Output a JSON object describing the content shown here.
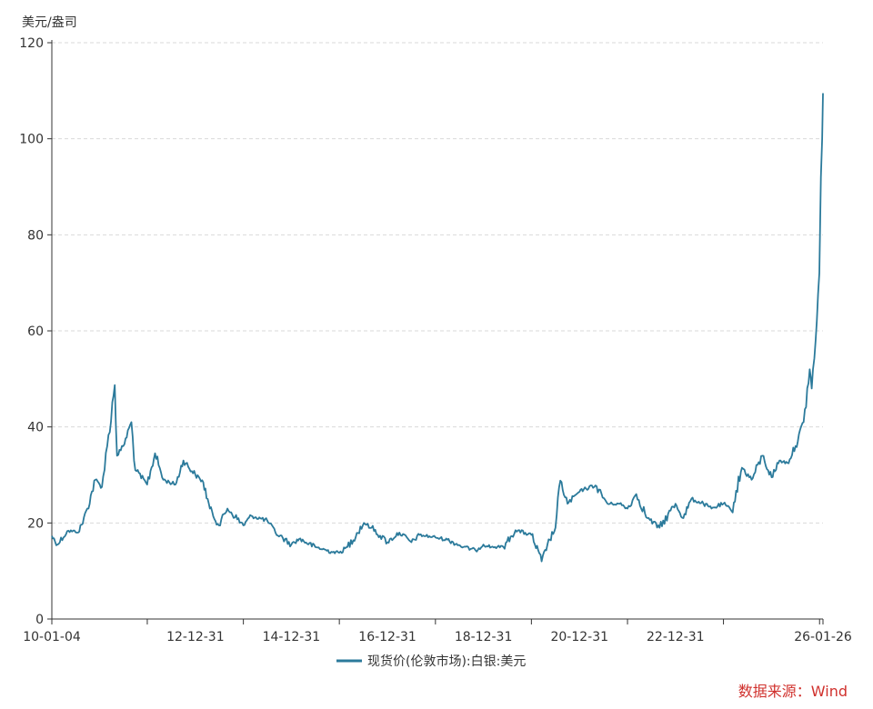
{
  "chart_data": {
    "type": "line",
    "ylabel": "美元/盎司",
    "ylim": [
      0,
      120
    ],
    "y_ticks": [
      0,
      20,
      40,
      60,
      80,
      100,
      120
    ],
    "x_tick_labels": [
      "10-01-04",
      "12-12-31",
      "14-12-31",
      "16-12-31",
      "18-12-31",
      "20-12-31",
      "22-12-31",
      "26-01-26"
    ],
    "grid": "horizontal-dashed",
    "legend_position": "bottom-center",
    "series": [
      {
        "name": "现货价(伦敦市场):白银:美元",
        "color": "#2b7a9b",
        "x": [
          "2010-01-04",
          "2010-02-15",
          "2010-05-01",
          "2010-08-01",
          "2010-10-01",
          "2010-12-01",
          "2011-01-20",
          "2011-03-01",
          "2011-04-28",
          "2011-05-15",
          "2011-07-01",
          "2011-09-01",
          "2011-10-01",
          "2011-12-30",
          "2012-02-28",
          "2012-05-01",
          "2012-08-01",
          "2012-10-01",
          "2012-12-31",
          "2013-03-01",
          "2013-04-20",
          "2013-06-28",
          "2013-09-01",
          "2013-12-31",
          "2014-03-01",
          "2014-07-01",
          "2014-09-01",
          "2014-12-31",
          "2015-03-01",
          "2015-07-01",
          "2015-11-01",
          "2015-12-31",
          "2016-03-01",
          "2016-07-05",
          "2016-09-01",
          "2016-12-31",
          "2017-04-01",
          "2017-07-01",
          "2017-09-01",
          "2017-12-31",
          "2018-04-01",
          "2018-08-01",
          "2018-11-01",
          "2018-12-31",
          "2019-03-01",
          "2019-06-01",
          "2019-09-01",
          "2019-12-31",
          "2020-03-18",
          "2020-05-01",
          "2020-07-01",
          "2020-08-07",
          "2020-10-01",
          "2020-12-31",
          "2021-02-01",
          "2021-05-01",
          "2021-08-01",
          "2021-11-01",
          "2021-12-31",
          "2022-03-08",
          "2022-06-01",
          "2022-09-01",
          "2022-12-31",
          "2023-03-01",
          "2023-05-01",
          "2023-08-01",
          "2023-10-01",
          "2023-12-31",
          "2024-03-01",
          "2024-05-20",
          "2024-08-01",
          "2024-10-22",
          "2024-12-31",
          "2025-03-01",
          "2025-05-01",
          "2025-07-01",
          "2025-09-01",
          "2025-10-17",
          "2025-11-01",
          "2025-12-01",
          "2025-12-29",
          "2026-01-10",
          "2026-01-20",
          "2026-01-26"
        ],
        "values": [
          17.3,
          15.5,
          18.3,
          18.2,
          23,
          29,
          27.5,
          36,
          48.7,
          34,
          36,
          41,
          31,
          28,
          34.5,
          29,
          28,
          33,
          30,
          28.5,
          23,
          19.5,
          23,
          19.5,
          21.5,
          20.5,
          18,
          15.5,
          16.7,
          15,
          14,
          13.8,
          15,
          20,
          19,
          16,
          18,
          16,
          17.5,
          17,
          16.5,
          15,
          14.3,
          15.5,
          15,
          15,
          18.5,
          17.5,
          12,
          15.5,
          19,
          28.8,
          24,
          26.5,
          27,
          27.8,
          24,
          24,
          23,
          26,
          21,
          19,
          24,
          21,
          25,
          24,
          23,
          24,
          22.5,
          31.5,
          29,
          34,
          29.5,
          33,
          32.5,
          36,
          41,
          52,
          48,
          58,
          72,
          92,
          100,
          109.5
        ]
      }
    ]
  },
  "source": "数据来源：Wind"
}
